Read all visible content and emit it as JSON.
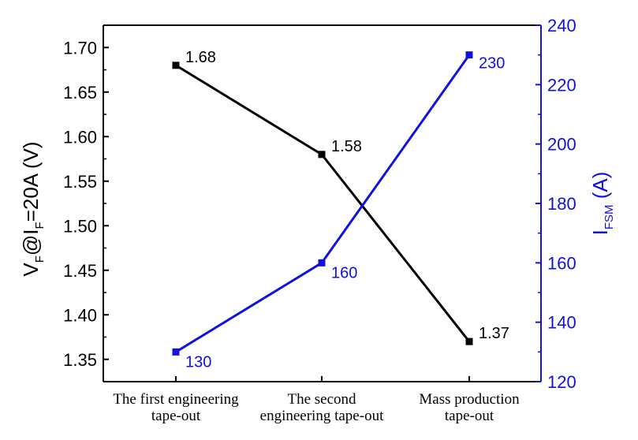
{
  "chart_data": {
    "type": "line",
    "categories": [
      [
        "The first engineering",
        "tape-out"
      ],
      [
        "The second",
        "engineering tape-out"
      ],
      [
        "Mass production",
        "tape-out"
      ]
    ],
    "y_left": {
      "label_main": "V",
      "label_sub1": "F",
      "label_mid": "@I",
      "label_sub2": "F",
      "label_tail": "=20A (V)",
      "ylim": [
        1.325,
        1.725
      ],
      "ticks": [
        "1.35",
        "1.40",
        "1.45",
        "1.50",
        "1.55",
        "1.60",
        "1.65",
        "1.70"
      ],
      "color": "#000000"
    },
    "y_right": {
      "label_main": "I",
      "label_sub": "FSM",
      "label_tail": " (A)",
      "ylim": [
        120,
        240
      ],
      "ticks": [
        "120",
        "140",
        "160",
        "180",
        "200",
        "220",
        "240"
      ],
      "color": "#1010e0"
    },
    "series": [
      {
        "axis": "left",
        "values": [
          1.68,
          1.58,
          1.37
        ],
        "labels": [
          "1.68",
          "1.58",
          "1.37"
        ],
        "color": "#000000"
      },
      {
        "axis": "right",
        "values": [
          130,
          160,
          230
        ],
        "labels": [
          "130",
          "160",
          "230"
        ],
        "color": "#1010e0"
      }
    ],
    "grid": false
  }
}
